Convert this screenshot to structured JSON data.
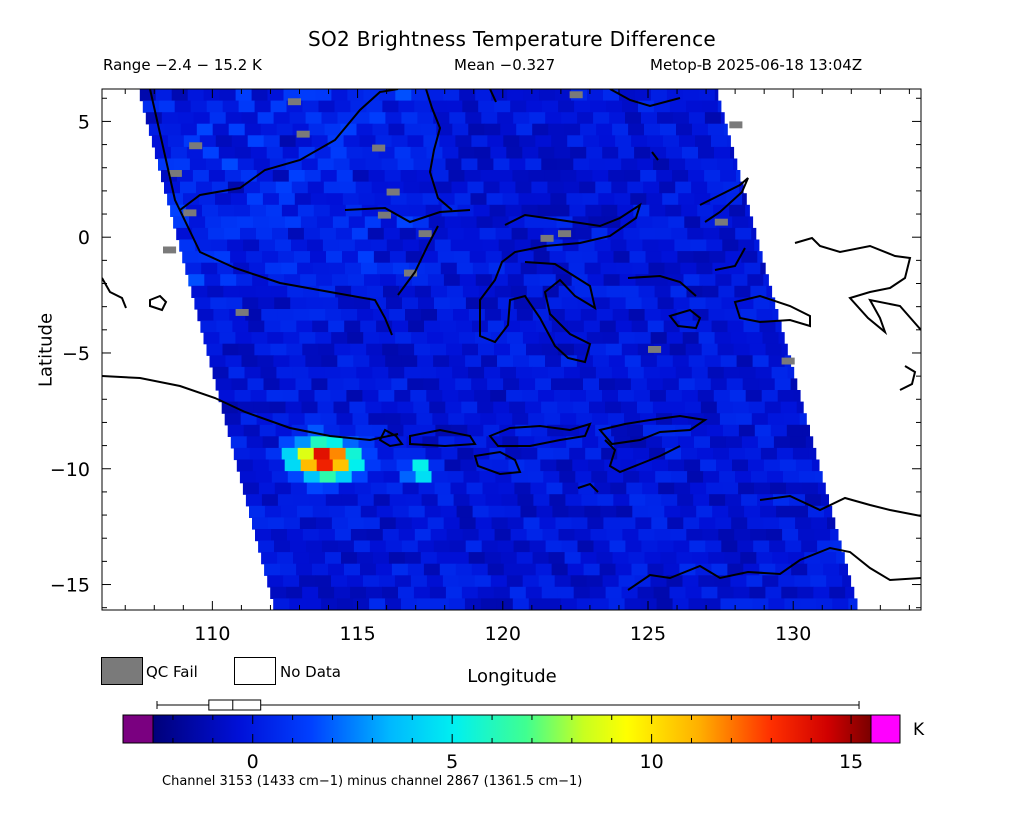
{
  "title": "SO2 Brightness Temperature Difference",
  "range_text": "Range −2.4 − 15.2 K",
  "mean_text": "Mean −0.327",
  "satellite_text": "Metop-B 2025-06-18 13:04Z",
  "legend": {
    "qc_fail": "QC Fail",
    "no_data": "No Data"
  },
  "colorbar": {
    "unit": "K",
    "ticks": [
      0,
      5,
      10,
      15
    ],
    "range": [
      -2.5,
      15.5
    ],
    "box_stats": {
      "whisker_low": -2.4,
      "q1": -1.1,
      "median": -0.5,
      "q3": 0.2,
      "whisker_high": 15.2
    }
  },
  "channel_note": "Channel 3153 (1433 cm−1) minus channel 2867 (1361.5 cm−1)",
  "chart_data": {
    "type": "heatmap",
    "title": "SO2 Brightness Temperature Difference",
    "xlabel": "Longitude",
    "ylabel": "Latitude",
    "xlim": [
      106.2,
      134.4
    ],
    "ylim": [
      -16.1,
      6.4
    ],
    "xticks": [
      110,
      115,
      120,
      125,
      130
    ],
    "yticks": [
      5,
      0,
      -5,
      -10,
      -15
    ],
    "value_unit": "K",
    "range": [
      -2.4,
      15.2
    ],
    "mean": -0.327,
    "background_value": -0.3,
    "hotspots": [
      {
        "lon": 113.9,
        "lat": -9.6,
        "peak": 15.0,
        "spread_lon": 1.1,
        "spread_lat": 0.8
      },
      {
        "lon": 117.2,
        "lat": -10.1,
        "peak": 9.0,
        "spread_lon": 0.5,
        "spread_lat": 0.3
      }
    ],
    "qc_fail_cells": [
      [
        108.3,
        -0.4
      ],
      [
        109.0,
        1.2
      ],
      [
        108.5,
        2.9
      ],
      [
        109.2,
        4.1
      ],
      [
        110.8,
        -3.1
      ],
      [
        112.6,
        6.0
      ],
      [
        112.9,
        4.6
      ],
      [
        115.7,
        1.1
      ],
      [
        115.5,
        4.0
      ],
      [
        116.6,
        -1.4
      ],
      [
        116.0,
        2.1
      ],
      [
        117.1,
        0.3
      ],
      [
        121.3,
        0.1
      ],
      [
        121.9,
        0.3
      ],
      [
        127.3,
        0.8
      ],
      [
        127.8,
        5.0
      ],
      [
        125.0,
        -4.7
      ],
      [
        129.6,
        -5.2
      ],
      [
        122.3,
        6.3
      ]
    ],
    "swath": {
      "left_edge_lon_at_top": 107.5,
      "left_edge_lon_at_bottom": 112.2,
      "right_edge_lon_at_top": 127.4,
      "right_edge_lon_at_bottom": 132.3
    }
  }
}
